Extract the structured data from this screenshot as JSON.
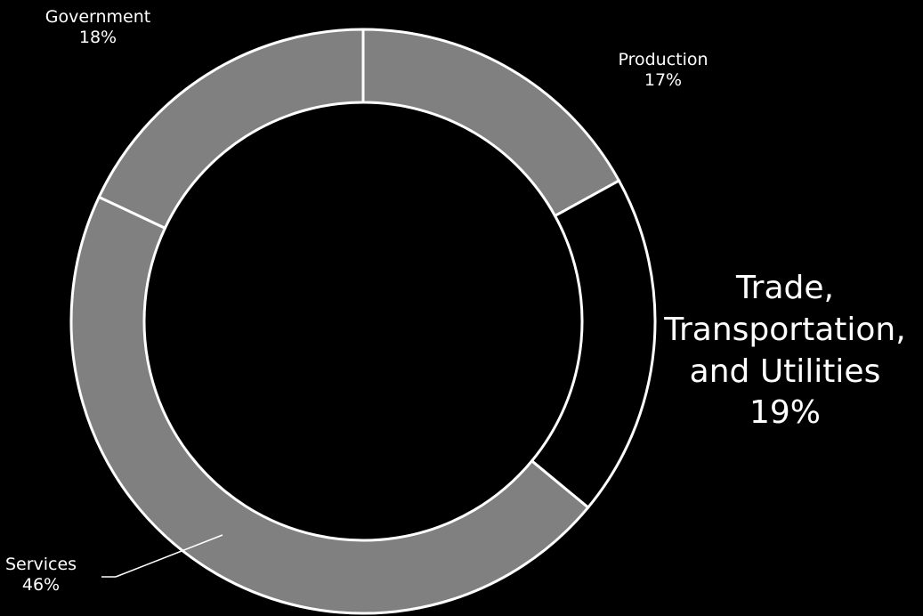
{
  "chart_data": {
    "type": "pie",
    "variant": "donut",
    "title": "",
    "slices": [
      {
        "label": "Production",
        "value_label": "17%",
        "value": 17,
        "color": "#808080"
      },
      {
        "label": "Trade, Transportation, and Utilities",
        "label_lines": [
          "Trade,",
          "Transportation,",
          "and Utilities"
        ],
        "value_label": "19%",
        "value": 19,
        "color": "#000000"
      },
      {
        "label": "Services",
        "value_label": "46%",
        "value": 46,
        "color": "#808080"
      },
      {
        "label": "Government",
        "value_label": "18%",
        "value": 18,
        "color": "#808080"
      }
    ],
    "start_angle_deg": 0,
    "direction": "clockwise",
    "background": "#000000",
    "border_color": "#ffffff",
    "text_color": "#ffffff"
  }
}
